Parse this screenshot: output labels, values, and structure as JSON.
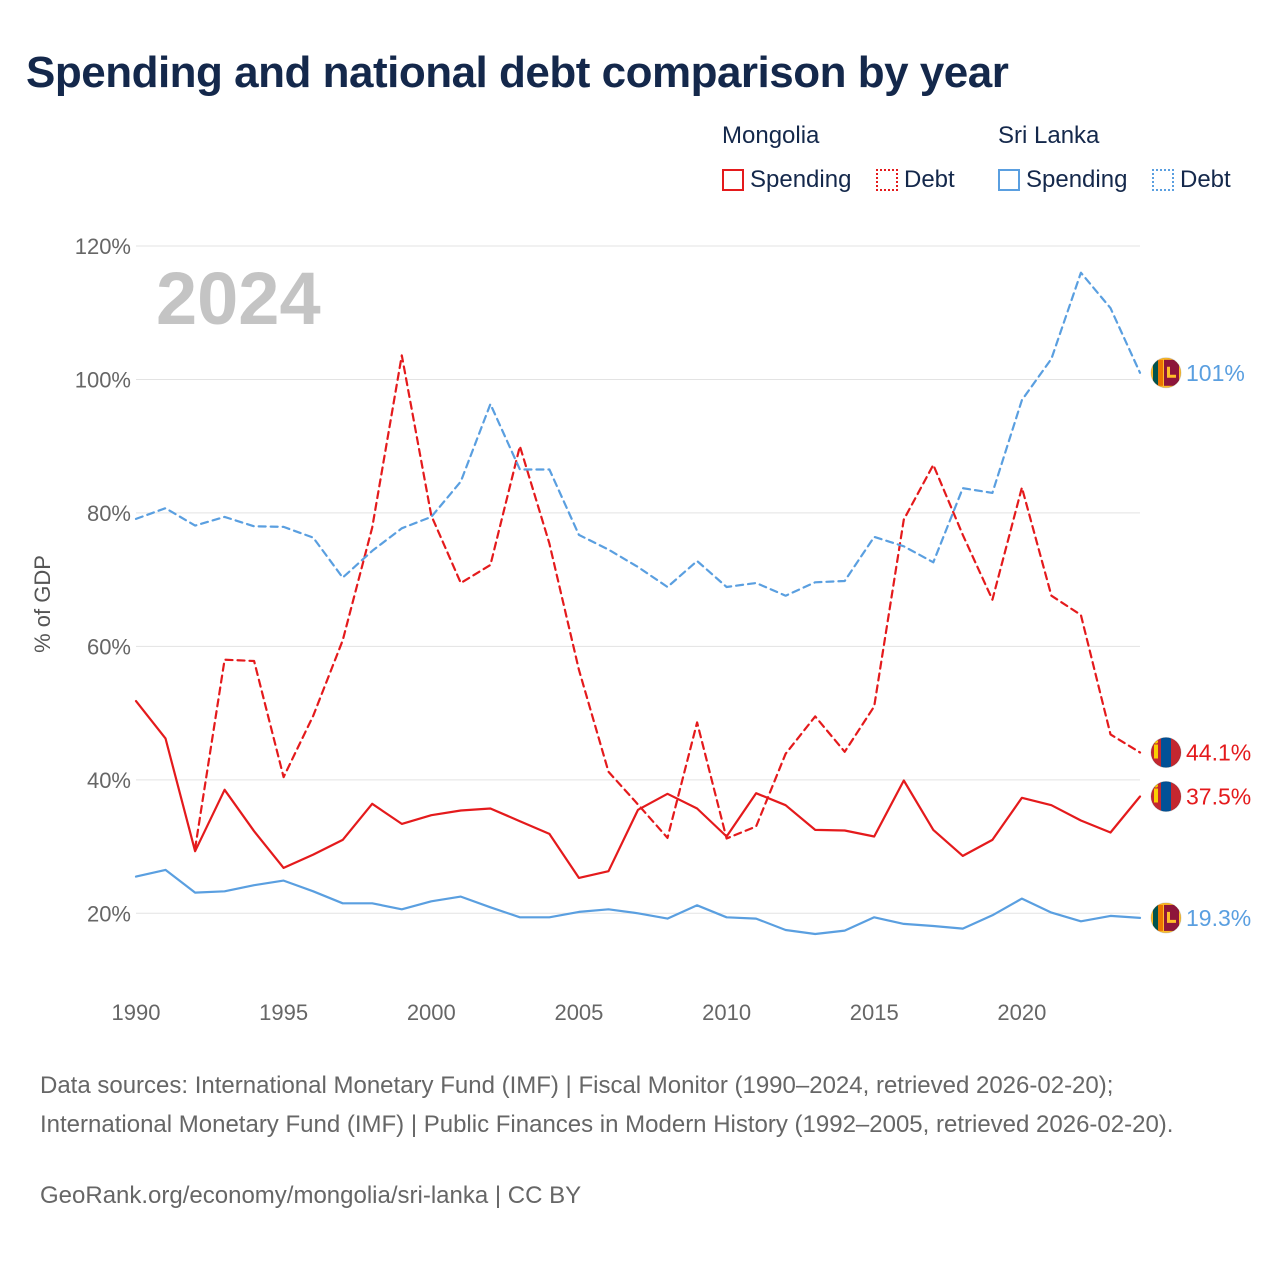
{
  "title": "Spending and national debt comparison by year",
  "legend": {
    "groups": [
      {
        "name": "Mongolia",
        "color": "#e41a1c",
        "items": [
          "Spending",
          "Debt"
        ]
      },
      {
        "name": "Sri Lanka",
        "color": "#5a9fe0",
        "items": [
          "Spending",
          "Debt"
        ]
      }
    ]
  },
  "chart_data": {
    "type": "line",
    "title": "Spending and national debt comparison by year",
    "year_watermark": "2024",
    "ylabel": "% of GDP",
    "xlabel": "",
    "xlim": [
      1990,
      2024
    ],
    "ylim": [
      10,
      120
    ],
    "x_ticks": [
      "1990",
      "1995",
      "2000",
      "2005",
      "2010",
      "2015",
      "2020"
    ],
    "y_ticks": [
      "20%",
      "40%",
      "60%",
      "80%",
      "100%",
      "120%"
    ],
    "x": [
      1990,
      1991,
      1992,
      1993,
      1994,
      1995,
      1996,
      1997,
      1998,
      1999,
      2000,
      2001,
      2002,
      2003,
      2004,
      2005,
      2006,
      2007,
      2008,
      2009,
      2010,
      2011,
      2012,
      2013,
      2014,
      2015,
      2016,
      2017,
      2018,
      2019,
      2020,
      2021,
      2022,
      2023,
      2024
    ],
    "series": [
      {
        "name": "Mongolia Spending",
        "country": "Mongolia",
        "measure": "Spending",
        "color": "#e41a1c",
        "dash": "solid",
        "end_label": "37.5%",
        "values": [
          51.8,
          46.2,
          29.3,
          38.5,
          32.3,
          26.8,
          28.8,
          31.0,
          36.4,
          33.4,
          34.7,
          35.4,
          35.7,
          33.8,
          31.9,
          25.3,
          26.3,
          35.5,
          37.9,
          35.7,
          31.5,
          38.0,
          36.2,
          32.5,
          32.4,
          31.5,
          39.9,
          32.5,
          28.6,
          31.0,
          37.3,
          36.2,
          33.9,
          32.1,
          37.5
        ]
      },
      {
        "name": "Mongolia Debt",
        "country": "Mongolia",
        "measure": "Debt",
        "color": "#e41a1c",
        "dash": "dashed",
        "end_label": "44.1%",
        "values": [
          null,
          null,
          29.7,
          58.0,
          57.8,
          40.4,
          49.6,
          60.9,
          77.8,
          103.6,
          79.6,
          69.5,
          72.2,
          90.0,
          75.4,
          56.5,
          41.2,
          36.3,
          31.3,
          48.6,
          31.2,
          33.0,
          43.9,
          49.5,
          44.2,
          51.0,
          79.0,
          87.2,
          76.7,
          67.0,
          83.8,
          67.6,
          64.7,
          46.8,
          44.1
        ]
      },
      {
        "name": "Sri Lanka Spending",
        "country": "Sri Lanka",
        "measure": "Spending",
        "color": "#5a9fe0",
        "dash": "solid",
        "end_label": "19.3%",
        "values": [
          25.5,
          26.5,
          23.1,
          23.3,
          24.2,
          24.9,
          23.3,
          21.5,
          21.5,
          20.6,
          21.8,
          22.5,
          20.9,
          19.4,
          19.4,
          20.2,
          20.6,
          20.0,
          19.2,
          21.2,
          19.4,
          19.2,
          17.5,
          16.9,
          17.4,
          19.4,
          18.4,
          18.1,
          17.7,
          19.7,
          22.2,
          20.1,
          18.8,
          19.6,
          19.3
        ]
      },
      {
        "name": "Sri Lanka Debt",
        "country": "Sri Lanka",
        "measure": "Debt",
        "color": "#5a9fe0",
        "dash": "dashed",
        "end_label": "101%",
        "values": [
          79.1,
          80.7,
          78.1,
          79.4,
          78.0,
          77.9,
          76.3,
          70.3,
          74.3,
          77.7,
          79.4,
          84.7,
          96.3,
          86.5,
          86.5,
          76.7,
          74.5,
          71.9,
          68.9,
          72.8,
          68.9,
          69.5,
          67.6,
          69.6,
          69.8,
          76.4,
          75.0,
          72.6,
          83.7,
          83.0,
          96.9,
          103.1,
          116.0,
          110.7,
          101.0
        ]
      }
    ]
  },
  "sources": "Data sources: International Monetary Fund (IMF) | Fiscal Monitor (1990–2024, retrieved 2026-02-20); International Monetary Fund (IMF) | Public Finances in Modern History (1992–2005, retrieved 2026-02-20).",
  "credit": "GeoRank.org/economy/mongolia/sri-lanka | CC BY"
}
